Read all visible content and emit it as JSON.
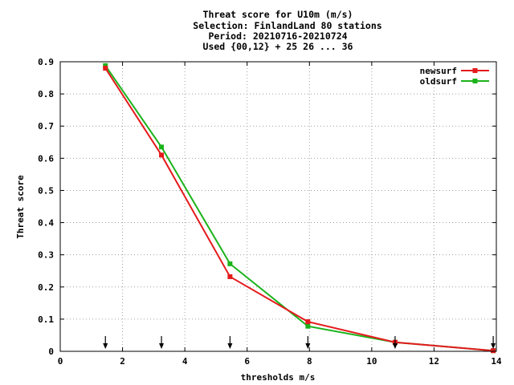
{
  "chart_data": {
    "type": "line",
    "title_lines": [
      "Threat score  for U10m (m/s)",
      "Selection: FinlandLand     80 stations",
      "Period: 20210716-20210724",
      "Used {00,12} + 25 26 ... 36"
    ],
    "xlabel": "thresholds m/s",
    "ylabel": "Threat score",
    "xlim": [
      0,
      14
    ],
    "ylim": [
      0,
      0.9
    ],
    "xticks": [
      0,
      2,
      4,
      6,
      8,
      10,
      12,
      14
    ],
    "yticks": [
      0,
      0.1,
      0.2,
      0.3,
      0.4,
      0.5,
      0.6,
      0.7,
      0.8,
      0.9
    ],
    "grid": true,
    "legend_position": "top-right",
    "series": [
      {
        "name": "newsurf",
        "color": "#e41a1c",
        "x": [
          1.45,
          3.25,
          5.45,
          7.95,
          10.75,
          13.9
        ],
        "y": [
          0.88,
          0.61,
          0.232,
          0.092,
          0.028,
          0.002
        ]
      },
      {
        "name": "oldsurf",
        "color": "#1bb31b",
        "x": [
          1.45,
          3.25,
          5.45,
          7.95,
          10.75,
          13.9
        ],
        "y": [
          0.888,
          0.635,
          0.272,
          0.078,
          0.028,
          0.002
        ]
      }
    ],
    "threshold_arrows": [
      1.45,
      3.25,
      5.45,
      7.95,
      10.75,
      13.9
    ]
  }
}
